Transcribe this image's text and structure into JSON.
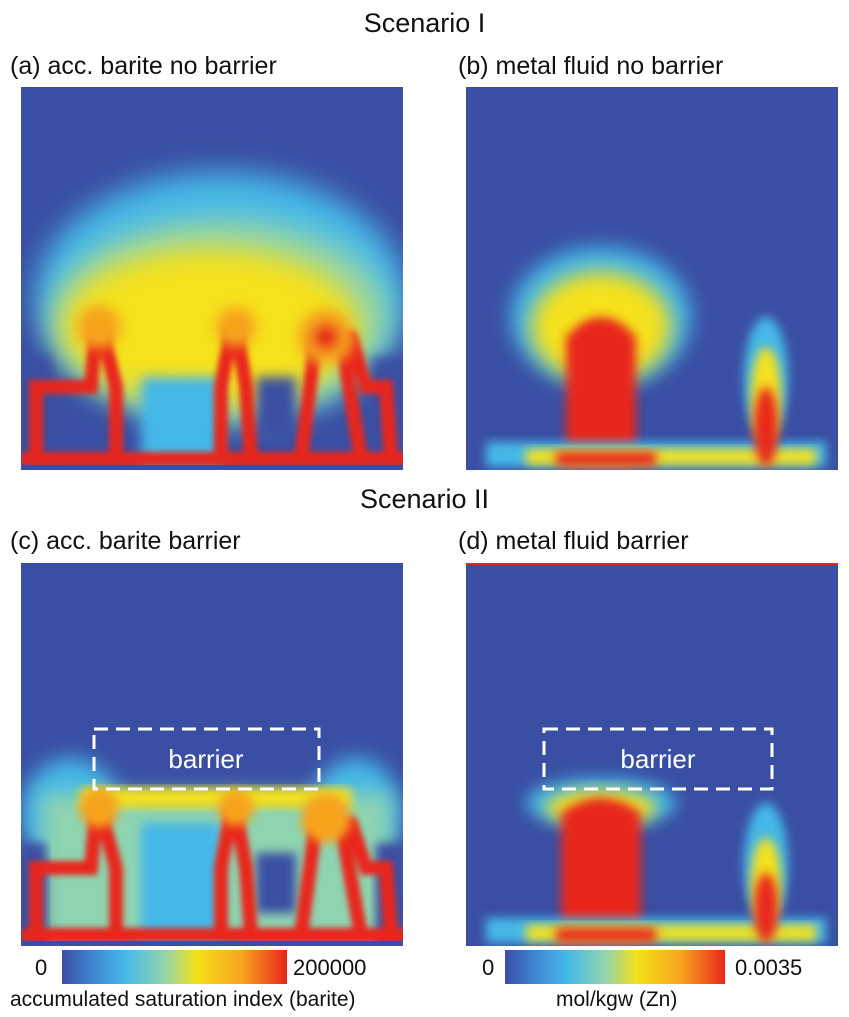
{
  "scenario_1": {
    "title": "Scenario I"
  },
  "scenario_2": {
    "title": "Scenario II"
  },
  "panels": [
    {
      "label": "(a) acc. barite no barrier",
      "variable": "accumulated saturation index (barite)",
      "barrier": false
    },
    {
      "label": "(b)   metal fluid no barrier",
      "variable": "mol/kgw (Zn)",
      "barrier": false
    },
    {
      "label": "(c) acc. barite barrier",
      "variable": "accumulated saturation index (barite)",
      "barrier": true,
      "barrier_label": "barrier"
    },
    {
      "label": "(d)   metal fluid barrier",
      "variable": "mol/kgw (Zn)",
      "barrier": true,
      "barrier_label": "barrier"
    }
  ],
  "colorbars": [
    {
      "min": "0",
      "max": "200000",
      "label": "accumulated saturation index (barite)"
    },
    {
      "min": "0",
      "max": "0.0035",
      "label": "mol/kgw (Zn)"
    }
  ],
  "colors": {
    "background_blue": "#3a4fa3",
    "low": "#3a4fa3",
    "mid_cyan": "#45b8e8",
    "mid_yellow": "#f5e11a",
    "high_red": "#e8271c"
  },
  "colormap_stops": [
    "#3a4fa3",
    "#3f7fcf",
    "#45b8e8",
    "#8ed4b0",
    "#f5e11a",
    "#f7a41f",
    "#e8271c"
  ]
}
